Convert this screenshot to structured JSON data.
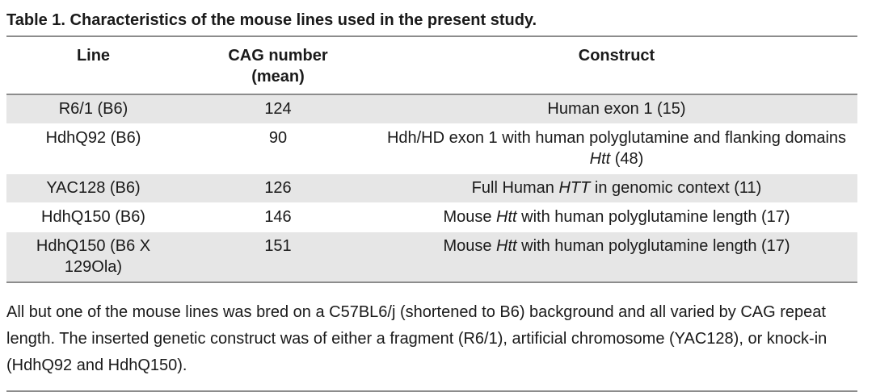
{
  "caption": "Table 1.  Characteristics of the mouse lines used in the present study.",
  "headers": {
    "line": "Line",
    "cag_number": "CAG number\n(mean)",
    "construct": "Construct"
  },
  "rows": [
    {
      "line": "R6/1 (B6)",
      "cag": "124",
      "construct": [
        {
          "t": "Human exon 1 (15)"
        }
      ]
    },
    {
      "line": "HdhQ92 (B6)",
      "cag": "90",
      "construct": [
        {
          "t": "Hdh/HD exon 1 with human polyglutamine and flanking domains "
        },
        {
          "t": "Htt",
          "i": true
        },
        {
          "t": " (48)"
        }
      ]
    },
    {
      "line": "YAC128 (B6)",
      "cag": "126",
      "construct": [
        {
          "t": "Full Human "
        },
        {
          "t": "HTT",
          "i": true
        },
        {
          "t": " in genomic context (11)"
        }
      ]
    },
    {
      "line": "HdhQ150 (B6)",
      "cag": "146",
      "construct": [
        {
          "t": "Mouse "
        },
        {
          "t": "Htt",
          "i": true
        },
        {
          "t": " with human polyglutamine length (17)"
        }
      ]
    },
    {
      "line": "HdhQ150 (B6 X 129Ola)",
      "cag": "151",
      "construct": [
        {
          "t": "Mouse "
        },
        {
          "t": "Htt",
          "i": true
        },
        {
          "t": " with human polyglutamine length (17)"
        }
      ]
    }
  ],
  "footnote": "All but one of the mouse lines was bred on a C57BL6/j (shortened to B6) background and all varied by CAG repeat length. The inserted genetic construct was of either a fragment (R6/1), artificial chromosome (YAC128), or knock-in (HdhQ92 and HdhQ150)."
}
